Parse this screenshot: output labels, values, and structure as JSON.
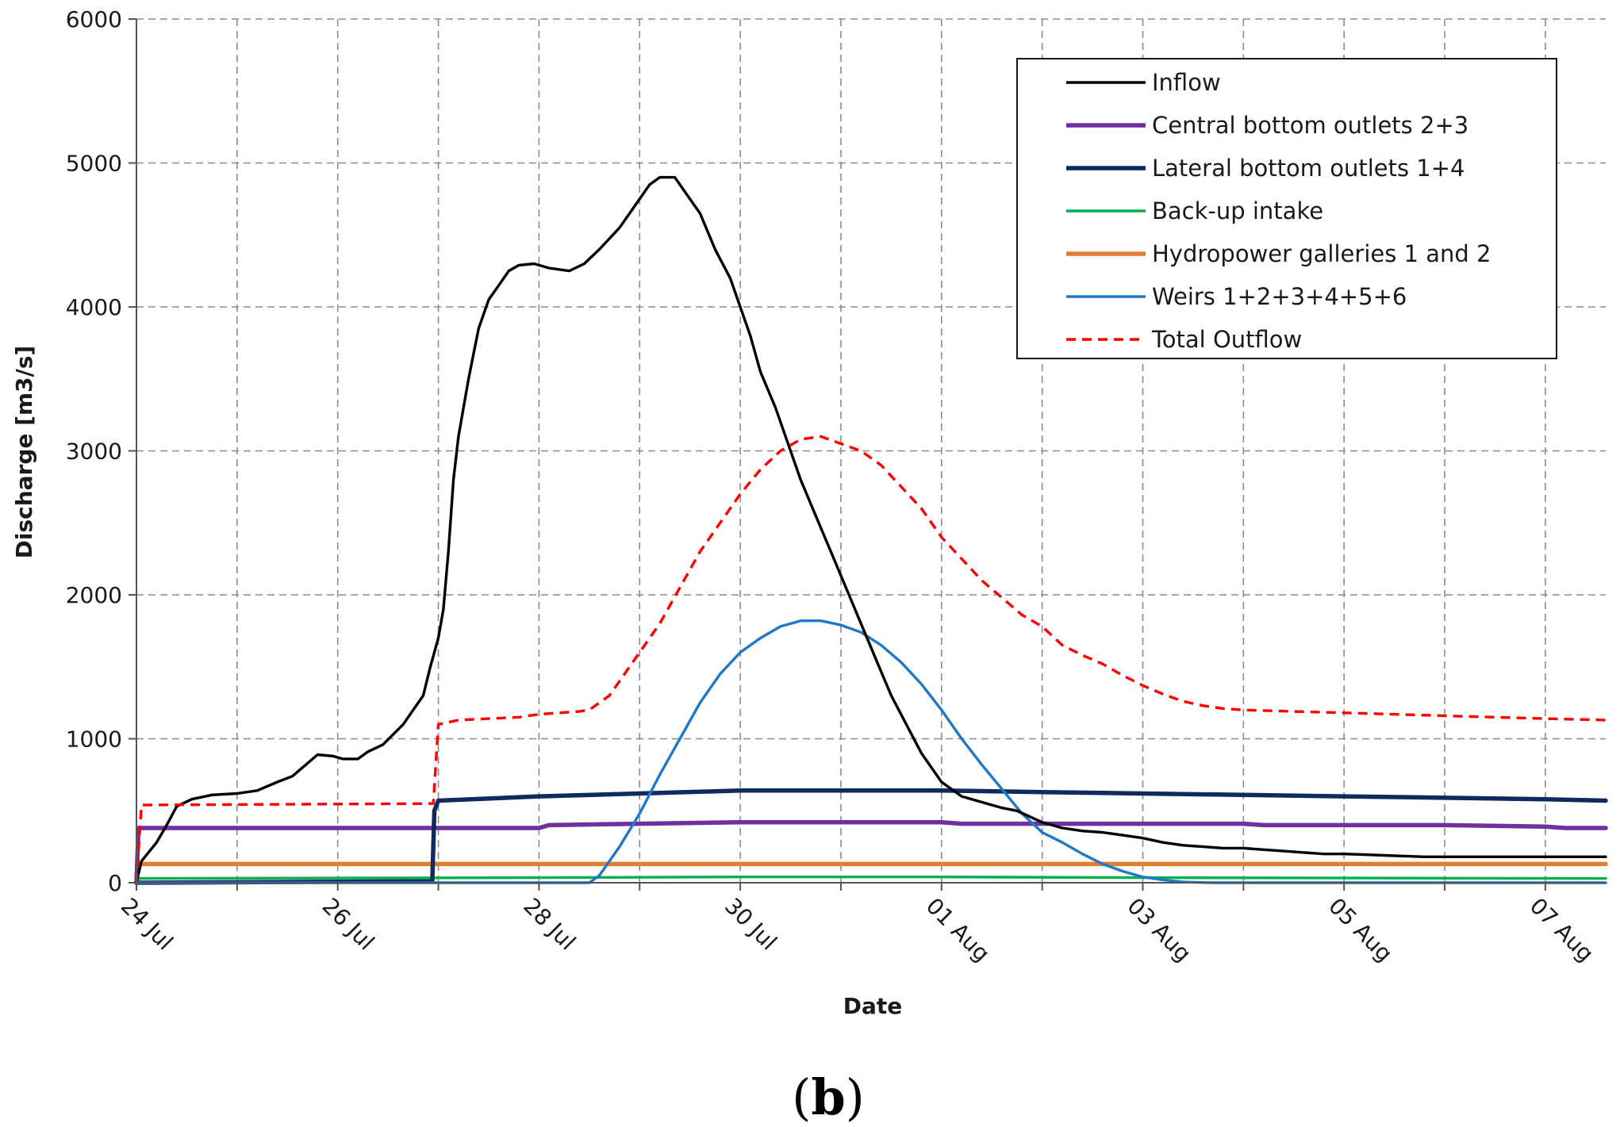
{
  "chart_data": {
    "type": "line",
    "title": "",
    "xlabel": "Date",
    "ylabel": "Discharge [m3/s]",
    "ylim": [
      0,
      6000
    ],
    "yticks": [
      0,
      1000,
      2000,
      3000,
      4000,
      5000,
      6000
    ],
    "xlim": [
      0,
      14.6
    ],
    "x_unit": "days since 24 Jul",
    "xticks": [
      {
        "x": 0,
        "label": "24 Jul"
      },
      {
        "x": 2,
        "label": "26 Jul"
      },
      {
        "x": 4,
        "label": "28 Jul"
      },
      {
        "x": 6,
        "label": "30 Jul"
      },
      {
        "x": 8,
        "label": "01 Aug"
      },
      {
        "x": 10,
        "label": "03 Aug"
      },
      {
        "x": 12,
        "label": "05 Aug"
      },
      {
        "x": 14,
        "label": "07 Aug"
      }
    ],
    "grid": true,
    "legend_position": "top-right",
    "series": [
      {
        "name": "Inflow",
        "color": "#000000",
        "style": "solid",
        "points": [
          [
            0,
            0
          ],
          [
            0.05,
            150
          ],
          [
            0.2,
            280
          ],
          [
            0.3,
            400
          ],
          [
            0.4,
            530
          ],
          [
            0.55,
            580
          ],
          [
            0.75,
            610
          ],
          [
            1.0,
            620
          ],
          [
            1.2,
            640
          ],
          [
            1.4,
            700
          ],
          [
            1.55,
            740
          ],
          [
            1.65,
            800
          ],
          [
            1.8,
            890
          ],
          [
            1.95,
            880
          ],
          [
            2.05,
            860
          ],
          [
            2.2,
            860
          ],
          [
            2.3,
            910
          ],
          [
            2.45,
            960
          ],
          [
            2.55,
            1030
          ],
          [
            2.65,
            1100
          ],
          [
            2.75,
            1200
          ],
          [
            2.85,
            1300
          ],
          [
            2.92,
            1500
          ],
          [
            3.0,
            1700
          ],
          [
            3.05,
            1900
          ],
          [
            3.1,
            2300
          ],
          [
            3.15,
            2800
          ],
          [
            3.2,
            3100
          ],
          [
            3.3,
            3500
          ],
          [
            3.4,
            3850
          ],
          [
            3.5,
            4050
          ],
          [
            3.6,
            4150
          ],
          [
            3.7,
            4250
          ],
          [
            3.8,
            4290
          ],
          [
            3.95,
            4300
          ],
          [
            4.1,
            4270
          ],
          [
            4.3,
            4250
          ],
          [
            4.45,
            4300
          ],
          [
            4.6,
            4400
          ],
          [
            4.8,
            4550
          ],
          [
            4.95,
            4700
          ],
          [
            5.1,
            4850
          ],
          [
            5.2,
            4900
          ],
          [
            5.35,
            4900
          ],
          [
            5.45,
            4800
          ],
          [
            5.6,
            4650
          ],
          [
            5.75,
            4400
          ],
          [
            5.9,
            4200
          ],
          [
            6.0,
            4000
          ],
          [
            6.1,
            3800
          ],
          [
            6.2,
            3550
          ],
          [
            6.35,
            3300
          ],
          [
            6.5,
            3000
          ],
          [
            6.6,
            2800
          ],
          [
            6.75,
            2550
          ],
          [
            6.9,
            2300
          ],
          [
            7.05,
            2050
          ],
          [
            7.2,
            1800
          ],
          [
            7.35,
            1550
          ],
          [
            7.5,
            1300
          ],
          [
            7.65,
            1100
          ],
          [
            7.8,
            900
          ],
          [
            8.0,
            700
          ],
          [
            8.2,
            600
          ],
          [
            8.4,
            560
          ],
          [
            8.6,
            520
          ],
          [
            8.75,
            500
          ],
          [
            9.0,
            420
          ],
          [
            9.2,
            380
          ],
          [
            9.4,
            360
          ],
          [
            9.6,
            350
          ],
          [
            9.8,
            330
          ],
          [
            10.0,
            310
          ],
          [
            10.2,
            280
          ],
          [
            10.4,
            260
          ],
          [
            10.6,
            250
          ],
          [
            10.8,
            240
          ],
          [
            11.0,
            240
          ],
          [
            11.2,
            230
          ],
          [
            11.4,
            220
          ],
          [
            11.6,
            210
          ],
          [
            11.8,
            200
          ],
          [
            12.0,
            200
          ],
          [
            12.2,
            195
          ],
          [
            12.4,
            190
          ],
          [
            12.6,
            185
          ],
          [
            12.8,
            180
          ],
          [
            13.0,
            180
          ],
          [
            13.5,
            180
          ],
          [
            14.0,
            180
          ],
          [
            14.6,
            180
          ]
        ]
      },
      {
        "name": "Central bottom outlets 2+3",
        "color": "#7030A0",
        "style": "solid",
        "points": [
          [
            0,
            0
          ],
          [
            0.02,
            380
          ],
          [
            2,
            380
          ],
          [
            4,
            380
          ],
          [
            4.1,
            400
          ],
          [
            5,
            410
          ],
          [
            6,
            420
          ],
          [
            8,
            420
          ],
          [
            8.2,
            410
          ],
          [
            10,
            410
          ],
          [
            11,
            410
          ],
          [
            11.2,
            400
          ],
          [
            13,
            400
          ],
          [
            14,
            390
          ],
          [
            14.2,
            380
          ],
          [
            14.6,
            380
          ]
        ]
      },
      {
        "name": "Lateral bottom outlets 1+4",
        "color": "#0F2A5C",
        "style": "solid",
        "points": [
          [
            0,
            0
          ],
          [
            2.94,
            10
          ],
          [
            2.96,
            500
          ],
          [
            3.0,
            570
          ],
          [
            4,
            600
          ],
          [
            5,
            620
          ],
          [
            6,
            640
          ],
          [
            8,
            640
          ],
          [
            9,
            630
          ],
          [
            10,
            620
          ],
          [
            11,
            610
          ],
          [
            12,
            600
          ],
          [
            13,
            590
          ],
          [
            14,
            580
          ],
          [
            14.6,
            570
          ]
        ]
      },
      {
        "name": "Back-up intake",
        "color": "#00B050",
        "style": "solid",
        "points": [
          [
            0,
            0
          ],
          [
            0.02,
            30
          ],
          [
            4,
            35
          ],
          [
            6,
            40
          ],
          [
            8,
            40
          ],
          [
            10,
            35
          ],
          [
            14.6,
            30
          ]
        ]
      },
      {
        "name": "Hydropower galleries 1 and 2",
        "color": "#E07F2F",
        "style": "solid",
        "points": [
          [
            0,
            0
          ],
          [
            0.02,
            130
          ],
          [
            14.6,
            130
          ]
        ]
      },
      {
        "name": "Weirs 1+2+3+4+5+6",
        "color": "#1F78C8",
        "style": "solid",
        "points": [
          [
            0,
            0
          ],
          [
            4.5,
            0
          ],
          [
            4.6,
            50
          ],
          [
            4.8,
            250
          ],
          [
            5.0,
            480
          ],
          [
            5.2,
            750
          ],
          [
            5.4,
            1000
          ],
          [
            5.6,
            1250
          ],
          [
            5.8,
            1450
          ],
          [
            6.0,
            1600
          ],
          [
            6.2,
            1700
          ],
          [
            6.4,
            1780
          ],
          [
            6.6,
            1820
          ],
          [
            6.8,
            1820
          ],
          [
            7.0,
            1790
          ],
          [
            7.2,
            1740
          ],
          [
            7.4,
            1650
          ],
          [
            7.6,
            1530
          ],
          [
            7.8,
            1380
          ],
          [
            8.0,
            1200
          ],
          [
            8.2,
            1000
          ],
          [
            8.4,
            820
          ],
          [
            8.6,
            650
          ],
          [
            8.8,
            480
          ],
          [
            9.0,
            350
          ],
          [
            9.2,
            280
          ],
          [
            9.4,
            200
          ],
          [
            9.6,
            130
          ],
          [
            9.8,
            80
          ],
          [
            10.0,
            40
          ],
          [
            10.2,
            20
          ],
          [
            10.4,
            5
          ],
          [
            10.7,
            0
          ],
          [
            14.6,
            0
          ]
        ]
      },
      {
        "name": "Total Outflow",
        "color": "#FF0000",
        "style": "dashed",
        "points": [
          [
            0,
            0
          ],
          [
            0.05,
            540
          ],
          [
            2.95,
            550
          ],
          [
            3.0,
            1100
          ],
          [
            3.2,
            1130
          ],
          [
            3.5,
            1140
          ],
          [
            3.8,
            1150
          ],
          [
            4.0,
            1170
          ],
          [
            4.2,
            1180
          ],
          [
            4.4,
            1190
          ],
          [
            4.5,
            1200
          ],
          [
            4.6,
            1250
          ],
          [
            4.7,
            1300
          ],
          [
            4.8,
            1400
          ],
          [
            5.0,
            1600
          ],
          [
            5.2,
            1800
          ],
          [
            5.4,
            2050
          ],
          [
            5.6,
            2300
          ],
          [
            5.8,
            2500
          ],
          [
            6.0,
            2700
          ],
          [
            6.2,
            2870
          ],
          [
            6.4,
            3000
          ],
          [
            6.6,
            3080
          ],
          [
            6.8,
            3100
          ],
          [
            7.0,
            3050
          ],
          [
            7.2,
            3000
          ],
          [
            7.4,
            2900
          ],
          [
            7.6,
            2750
          ],
          [
            7.8,
            2600
          ],
          [
            8.0,
            2400
          ],
          [
            8.2,
            2250
          ],
          [
            8.4,
            2100
          ],
          [
            8.6,
            1980
          ],
          [
            8.8,
            1860
          ],
          [
            9.0,
            1780
          ],
          [
            9.2,
            1650
          ],
          [
            9.4,
            1580
          ],
          [
            9.6,
            1520
          ],
          [
            9.8,
            1440
          ],
          [
            10.0,
            1370
          ],
          [
            10.2,
            1310
          ],
          [
            10.4,
            1260
          ],
          [
            10.6,
            1230
          ],
          [
            10.8,
            1210
          ],
          [
            11.0,
            1200
          ],
          [
            11.5,
            1190
          ],
          [
            12.0,
            1180
          ],
          [
            12.5,
            1170
          ],
          [
            13.0,
            1160
          ],
          [
            13.5,
            1150
          ],
          [
            14.0,
            1140
          ],
          [
            14.6,
            1130
          ]
        ]
      }
    ]
  },
  "caption": {
    "open": "(",
    "letter": "b",
    "close": ")"
  }
}
